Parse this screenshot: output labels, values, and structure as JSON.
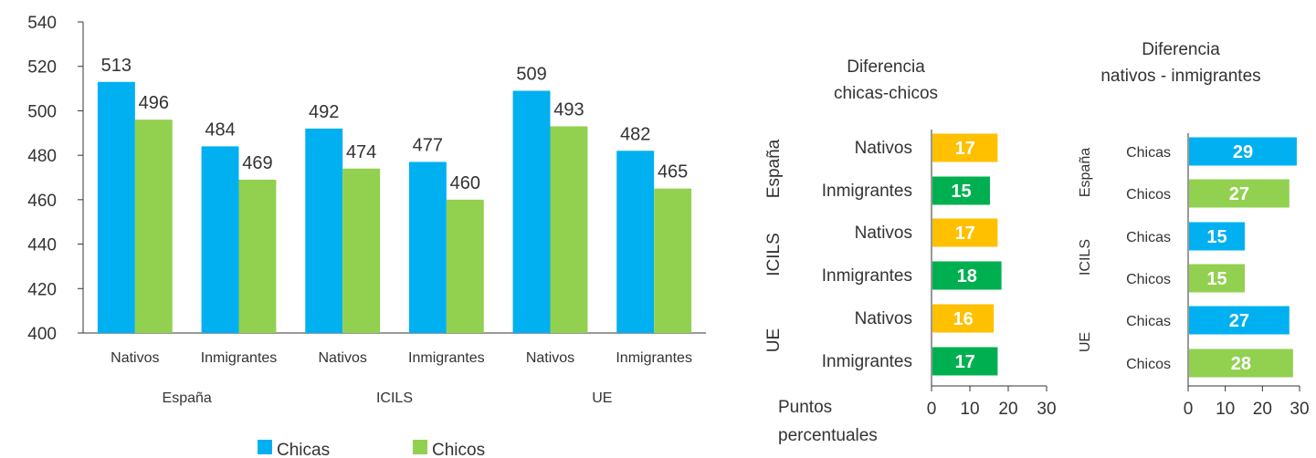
{
  "chart_data": [
    {
      "type": "bar",
      "title": "",
      "ylim": [
        400,
        540
      ],
      "yticks": [
        400,
        420,
        440,
        460,
        480,
        500,
        520,
        540
      ],
      "groups": [
        "España",
        "ICILS",
        "UE"
      ],
      "categories": [
        "Nativos",
        "Inmigrantes",
        "Nativos",
        "Inmigrantes",
        "Nativos",
        "Inmigrantes"
      ],
      "series": [
        {
          "name": "Chicas",
          "color": "#00b0f0",
          "values": [
            513,
            484,
            492,
            477,
            509,
            482
          ]
        },
        {
          "name": "Chicos",
          "color": "#92d050",
          "values": [
            496,
            469,
            474,
            460,
            493,
            465
          ]
        }
      ],
      "legend": "bottom"
    },
    {
      "type": "bar",
      "orientation": "horizontal",
      "title_lines": [
        "Diferencia",
        "chicas-chicos"
      ],
      "groups": [
        "España",
        "ICILS",
        "UE"
      ],
      "categories": [
        "Nativos",
        "Inmigrantes",
        "Nativos",
        "Inmigrantes",
        "Nativos",
        "Inmigrantes"
      ],
      "values": [
        17,
        15,
        17,
        18,
        16,
        17
      ],
      "colors": [
        "#ffc000",
        "#00b050",
        "#ffc000",
        "#00b050",
        "#ffc000",
        "#00b050"
      ],
      "xlim": [
        0,
        30
      ],
      "xticks": [
        0,
        10,
        20,
        30
      ],
      "xlabel_lines": [
        "Puntos",
        "percentuales"
      ]
    },
    {
      "type": "bar",
      "orientation": "horizontal",
      "title_lines": [
        "Diferencia",
        "nativos - inmigrantes"
      ],
      "groups": [
        "España",
        "ICILS",
        "UE"
      ],
      "categories": [
        "Chicas",
        "Chicos",
        "Chicas",
        "Chicos",
        "Chicas",
        "Chicos"
      ],
      "values": [
        29,
        27,
        15,
        15,
        27,
        28
      ],
      "colors": [
        "#00b0f0",
        "#92d050",
        "#00b0f0",
        "#92d050",
        "#00b0f0",
        "#92d050"
      ],
      "xlim": [
        0,
        30
      ],
      "xticks": [
        0,
        10,
        20,
        30
      ]
    }
  ]
}
